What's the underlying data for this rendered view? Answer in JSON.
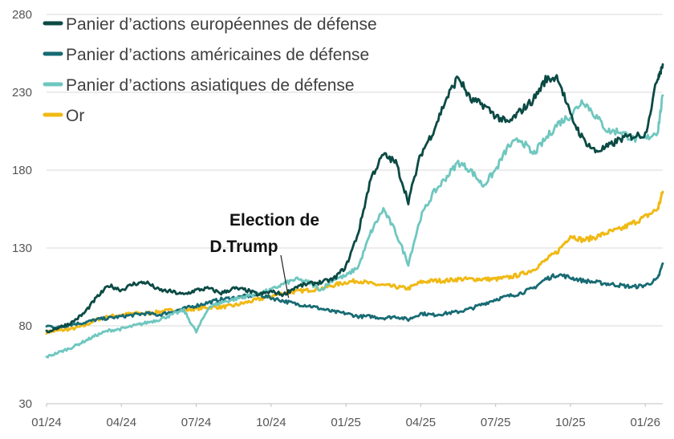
{
  "chart_data": {
    "type": "line",
    "title": "",
    "xlabel": "",
    "ylabel": "",
    "ylim": [
      30,
      280
    ],
    "yticks": [
      30,
      80,
      130,
      180,
      230,
      280
    ],
    "xticks": [
      "01/24",
      "04/24",
      "07/24",
      "10/24",
      "01/25",
      "04/25",
      "07/25",
      "10/25",
      "01/26"
    ],
    "grid": true,
    "legend_position": "top-left",
    "x_months": [
      0,
      0.5,
      1,
      1.5,
      2,
      2.5,
      3,
      3.5,
      4,
      4.5,
      5,
      5.5,
      6,
      6.5,
      7,
      7.5,
      8,
      8.5,
      9,
      9.5,
      10,
      10.5,
      11,
      11.5,
      12,
      12.5,
      13,
      13.5,
      14,
      14.5,
      15,
      15.5,
      16,
      16.5,
      17,
      17.5,
      18,
      18.5,
      19,
      19.5,
      20,
      20.5,
      21,
      21.5,
      22,
      22.5,
      23,
      23.5,
      24,
      24.5,
      24.7
    ],
    "series": [
      {
        "name": "Panier d’actions européennes de défense",
        "color": "#0b4a44",
        "values": [
          76,
          79,
          82,
          88,
          98,
          106,
          103,
          107,
          108,
          103,
          102,
          100,
          103,
          104,
          101,
          104,
          103,
          100,
          102,
          100,
          105,
          107,
          108,
          110,
          118,
          140,
          175,
          190,
          185,
          160,
          190,
          205,
          225,
          240,
          225,
          222,
          215,
          210,
          218,
          225,
          238,
          240,
          215,
          200,
          192,
          195,
          200,
          202,
          203,
          240,
          248
        ]
      },
      {
        "name": "Panier d’actions américaines de défense",
        "color": "#176b74",
        "values": [
          80,
          79,
          81,
          82,
          84,
          85,
          86,
          87,
          88,
          87,
          89,
          91,
          93,
          95,
          97,
          98,
          99,
          100,
          98,
          96,
          94,
          93,
          91,
          89,
          88,
          86,
          86,
          85,
          86,
          84,
          88,
          87,
          88,
          89,
          91,
          94,
          97,
          99,
          101,
          104,
          110,
          113,
          111,
          109,
          108,
          107,
          106,
          105,
          106,
          110,
          120
        ]
      },
      {
        "name": "Panier d’actions asiatiques de défense",
        "color": "#6fc7bf",
        "values": [
          60,
          63,
          66,
          70,
          74,
          77,
          78,
          80,
          82,
          84,
          87,
          90,
          76,
          92,
          95,
          97,
          99,
          101,
          103,
          107,
          110,
          108,
          103,
          110,
          112,
          118,
          140,
          155,
          140,
          120,
          150,
          165,
          175,
          185,
          180,
          170,
          180,
          195,
          200,
          190,
          200,
          210,
          215,
          225,
          215,
          205,
          205,
          200,
          200,
          205,
          228
        ]
      },
      {
        "name": "Or",
        "color": "#f0b914",
        "values": [
          76,
          77,
          78,
          80,
          84,
          86,
          87,
          88,
          88,
          89,
          90,
          90,
          91,
          92,
          92,
          93,
          95,
          97,
          99,
          101,
          102,
          103,
          104,
          106,
          108,
          109,
          107,
          106,
          105,
          104,
          108,
          109,
          109,
          110,
          110,
          110,
          110,
          111,
          113,
          116,
          122,
          128,
          138,
          135,
          137,
          140,
          142,
          146,
          150,
          155,
          166
        ]
      }
    ],
    "annotation": {
      "text_line1": "Election de",
      "text_line2": "D.Trump",
      "target_month": 9.7,
      "target_value": 98
    }
  }
}
